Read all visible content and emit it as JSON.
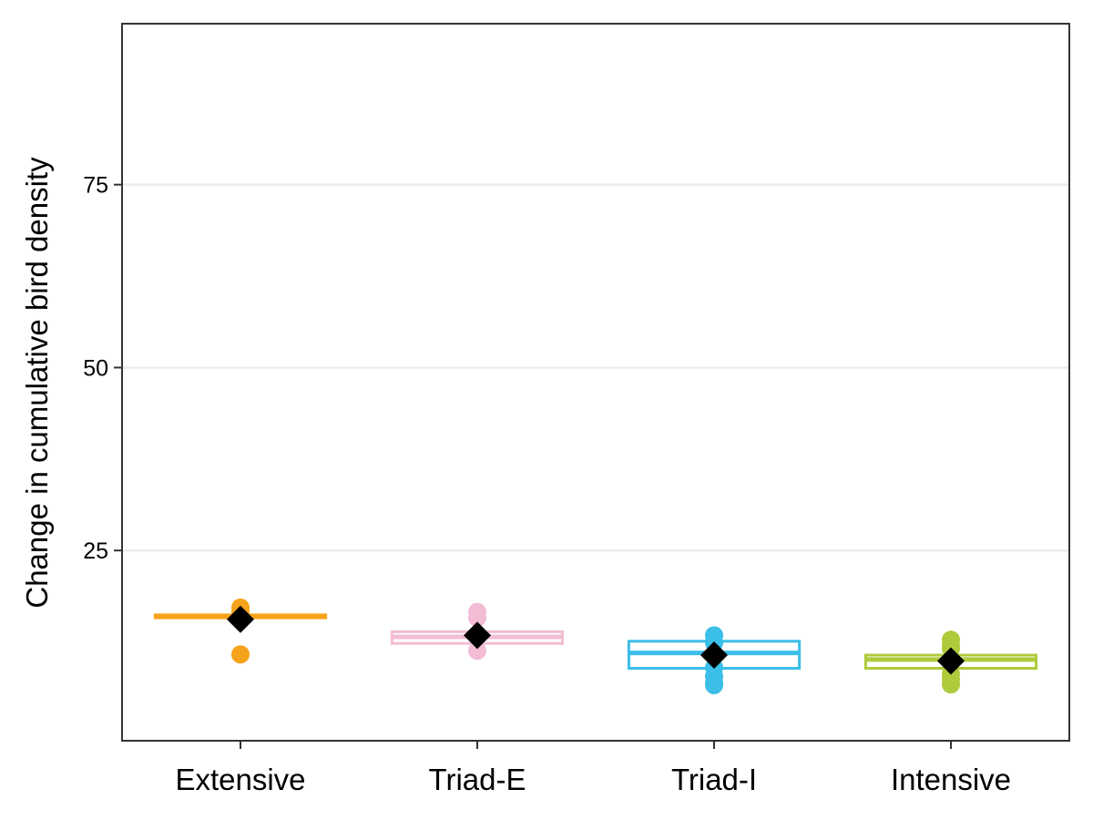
{
  "chart_data": {
    "type": "boxplot",
    "title": "",
    "xlabel": "",
    "ylabel": "Change in cumulative bird density",
    "ylim": [
      -1,
      97
    ],
    "yticks": [
      25,
      50,
      75
    ],
    "grid": "horizontal",
    "categories": [
      "Extensive",
      "Triad-E",
      "Triad-I",
      "Intensive"
    ],
    "boxes": [
      {
        "category": "Extensive",
        "color": "#F5A31A",
        "q1": 15.8,
        "median": 16.0,
        "q3": 16.2,
        "whisker_low": 15.8,
        "whisker_high": 16.2,
        "mean": 15.6,
        "points": [
          17.2,
          16.6,
          16.0,
          10.8
        ]
      },
      {
        "category": "Triad-E",
        "color": "#F2BDD4",
        "q1": 12.3,
        "median": 13.2,
        "q3": 13.9,
        "whisker_low": 12.3,
        "whisker_high": 13.9,
        "mean": 13.4,
        "points": [
          16.6,
          15.8,
          11.3
        ]
      },
      {
        "category": "Triad-I",
        "color": "#3BBFE8",
        "q1": 8.9,
        "median": 11.0,
        "q3": 12.6,
        "whisker_low": 8.9,
        "whisker_high": 12.6,
        "mean": 10.7,
        "points": [
          13.4,
          12.4,
          9.0,
          7.8,
          6.9,
          6.6
        ]
      },
      {
        "category": "Intensive",
        "color": "#ADCB3B",
        "q1": 8.9,
        "median": 10.1,
        "q3": 10.7,
        "whisker_low": 8.9,
        "whisker_high": 10.7,
        "mean": 9.9,
        "points": [
          12.8,
          12.0,
          11.6,
          8.1,
          7.4,
          6.7
        ]
      }
    ],
    "mean_marker": {
      "shape": "diamond",
      "color": "#000000"
    }
  }
}
